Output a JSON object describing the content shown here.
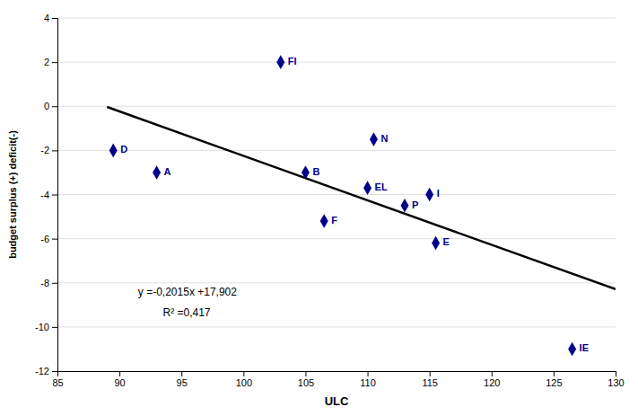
{
  "chart_data": {
    "type": "scatter",
    "x_label": "ULC",
    "y_label": "budget surplus (+) deficit(-)",
    "x": [
      89.5,
      93.0,
      103.0,
      105.0,
      106.5,
      110.0,
      110.5,
      113.0,
      115.0,
      115.5,
      126.5
    ],
    "values": [
      -2.0,
      -3.0,
      2.0,
      -3.0,
      -5.2,
      -3.7,
      -1.5,
      -4.5,
      -4.0,
      -6.2,
      -11.0
    ],
    "labels": [
      "D",
      "A",
      "FI",
      "B",
      "F",
      "EL",
      "N",
      "P",
      "I",
      "E",
      "IE"
    ],
    "color": "#00008B",
    "marker": "diamond",
    "trendline": {
      "x": [
        89.0,
        130.0
      ],
      "values": [
        -0.0315,
        -8.293
      ],
      "color": "#000000"
    },
    "annotations": [
      {
        "text": "y =-0,2015x +17,902",
        "x": 91.5,
        "y": -8.6
      },
      {
        "text": "R² =0,417",
        "x": 93.5,
        "y": -9.5
      }
    ],
    "xlim": [
      85,
      130
    ],
    "ylim": [
      -12,
      4
    ],
    "xticks": [
      85,
      90,
      95,
      100,
      105,
      110,
      115,
      120,
      125,
      130
    ],
    "yticks": [
      -12,
      -10,
      -8,
      -6,
      -4,
      -2,
      0,
      2,
      4
    ],
    "grid": true
  }
}
